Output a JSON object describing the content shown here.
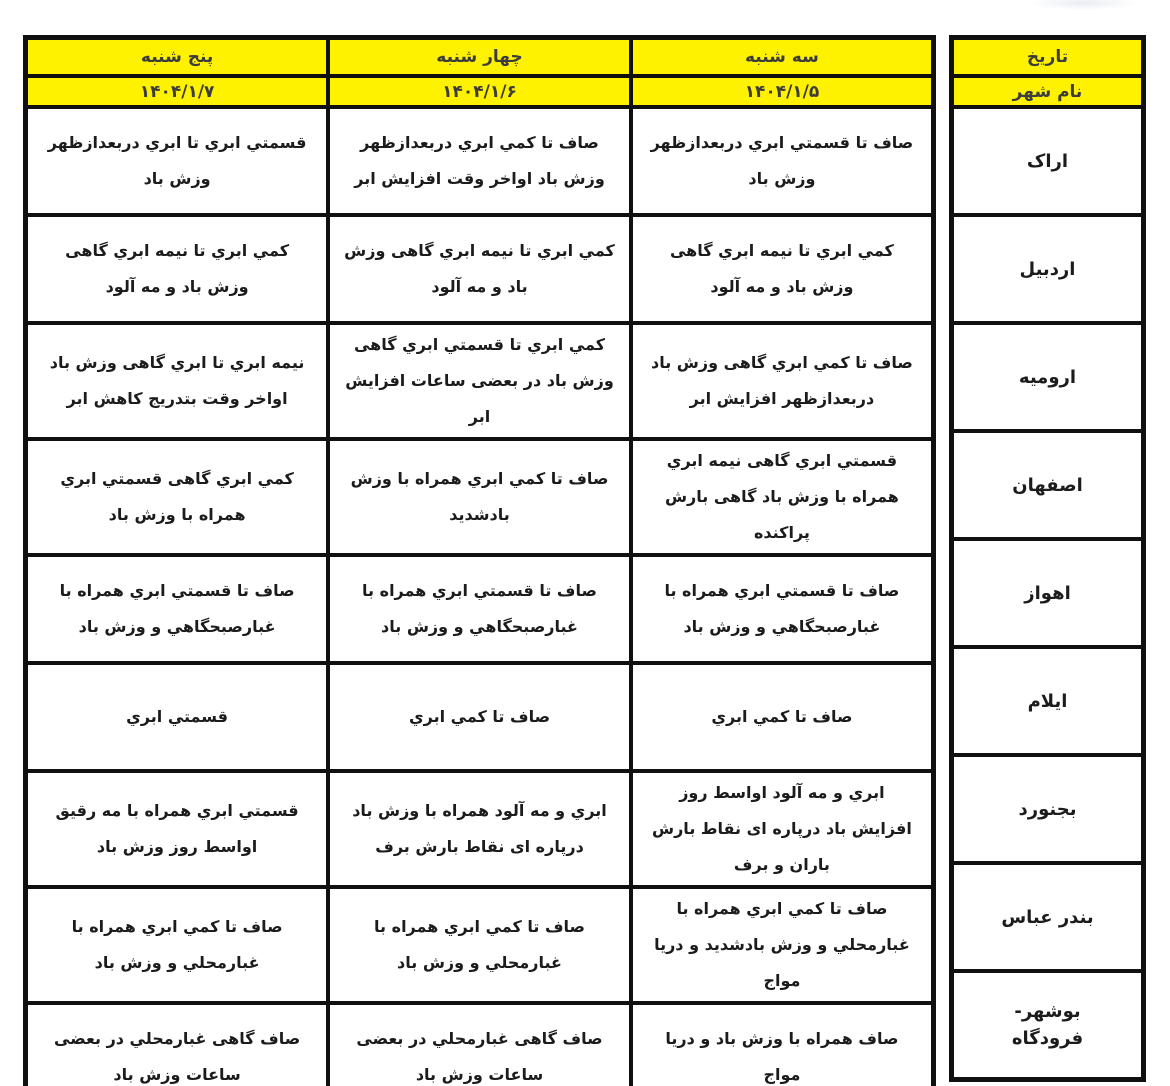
{
  "colors": {
    "header_bg": "#FFF200",
    "border": "#101010",
    "header_text": "#3c3c3c",
    "body_text": "#1c1c1c"
  },
  "table": {
    "date_header": "تاریخ",
    "city_header": "نام شهر",
    "days": [
      {
        "label": "سه شنبه",
        "date": "۱۴۰۴/۱/۵"
      },
      {
        "label": "چهار شنبه",
        "date": "۱۴۰۴/۱/۶"
      },
      {
        "label": "پنج شنبه",
        "date": "۱۴۰۴/۱/۷"
      }
    ],
    "rows": [
      {
        "city": "اراک",
        "forecasts": [
          "صاف تا قسمتي ابري دربعدازظهر وزش باد",
          "صاف تا كمي ابري دربعدازظهر وزش باد اواخر وقت افزايش ابر",
          "قسمتي ابري تا ابري دربعدازظهر وزش باد"
        ]
      },
      {
        "city": "اردبیل",
        "forecasts": [
          "كمي ابري تا نيمه ابري گاهی وزش باد و مه آلود",
          "كمي ابري تا نيمه ابري گاهی وزش باد و مه آلود",
          "كمي ابري تا نيمه ابري گاهی وزش باد و مه آلود"
        ]
      },
      {
        "city": "ارومیه",
        "forecasts": [
          "صاف تا كمي ابري گاهی وزش باد دربعدازظهر افزايش ابر",
          "كمي ابري تا قسمتي ابري گاهی وزش باد در بعضی ساعات افزايش ابر",
          "نيمه ابري تا ابري گاهی وزش باد اواخر وقت بتدريج كاهش ابر"
        ]
      },
      {
        "city": "اصفهان",
        "forecasts": [
          "قسمتي ابري گاهی نيمه ابري همراه با وزش باد گاهی بارش پراكنده",
          "صاف تا كمي ابري همراه با وزش بادشديد",
          "كمي ابري گاهی قسمتي ابري همراه با وزش باد"
        ]
      },
      {
        "city": "اهواز",
        "forecasts": [
          "صاف تا قسمتي ابري همراه با غبارصبحگاهي و وزش باد",
          "صاف تا قسمتي ابري همراه با غبارصبحگاهي و وزش باد",
          "صاف تا قسمتي ابري همراه با غبارصبحگاهي و وزش باد"
        ]
      },
      {
        "city": "ایلام",
        "forecasts": [
          "صاف تا كمي ابري",
          "صاف تا كمي ابري",
          "قسمتي ابري"
        ]
      },
      {
        "city": "بجنورد",
        "forecasts": [
          "ابري و مه آلود اواسط روز افزايش باد درپاره ای نقاط بارش باران و برف",
          "ابري و مه آلود همراه با وزش باد درپاره ای نقاط بارش برف",
          "قسمتي ابري همراه با مه رقيق اواسط روز وزش باد"
        ]
      },
      {
        "city": "بندر عباس",
        "forecasts": [
          "صاف تا كمي ابري همراه با غبارمحلي و وزش بادشديد و دريا مواج",
          "صاف تا كمي ابري همراه با غبارمحلي و وزش باد",
          "صاف تا كمي ابري همراه با غبارمحلي و وزش باد"
        ]
      },
      {
        "city": "بوشهر-\nفرودگاه",
        "forecasts": [
          "صاف همراه با وزش باد و دريا مواج",
          "صاف گاهی غبارمحلي در بعضی ساعات وزش باد",
          "صاف گاهی غبارمحلي در بعضی ساعات وزش باد"
        ]
      }
    ]
  }
}
